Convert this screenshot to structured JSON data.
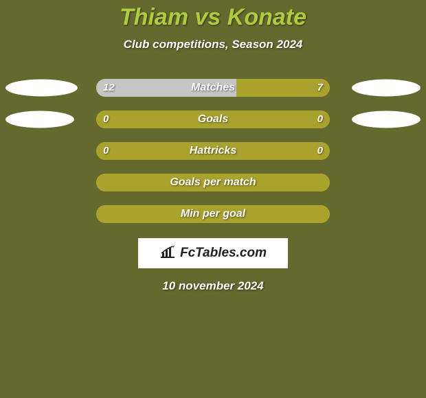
{
  "background_color": "#64692e",
  "title": {
    "text": "Thiam vs Konate",
    "color": "#aecc3b",
    "fontsize": 34
  },
  "subtitle": {
    "text": "Club competitions, Season 2024",
    "fontsize": 17
  },
  "bar_style": {
    "track_color": "#a9a22c",
    "highlight_color": "#c6c6c6",
    "label_fontsize": 16,
    "value_fontsize": 15
  },
  "ellipse_color": "#ffffff",
  "ellipses": {
    "row0": {
      "left_w": 105,
      "left_h": 25,
      "right_w": 100,
      "right_h": 25
    },
    "row1": {
      "left_w": 100,
      "left_h": 25,
      "right_w": 100,
      "right_h": 25
    }
  },
  "rows": [
    {
      "label": "Matches",
      "left": "12",
      "right": "7",
      "left_pct": 60,
      "right_pct": 40,
      "highlight": "left",
      "show_values": true
    },
    {
      "label": "Goals",
      "left": "0",
      "right": "0",
      "left_pct": 50,
      "right_pct": 50,
      "highlight": "none",
      "show_values": true
    },
    {
      "label": "Hattricks",
      "left": "0",
      "right": "0",
      "left_pct": 50,
      "right_pct": 50,
      "highlight": "none",
      "show_values": true
    },
    {
      "label": "Goals per match",
      "left": "",
      "right": "",
      "left_pct": 50,
      "right_pct": 50,
      "highlight": "none",
      "show_values": false
    },
    {
      "label": "Min per goal",
      "left": "",
      "right": "",
      "left_pct": 50,
      "right_pct": 50,
      "highlight": "none",
      "show_values": false
    }
  ],
  "logo": {
    "background": "#ffffff",
    "text": "FcTables.com",
    "icon_color": "#222222"
  },
  "date": {
    "text": "10 november 2024",
    "fontsize": 17
  }
}
